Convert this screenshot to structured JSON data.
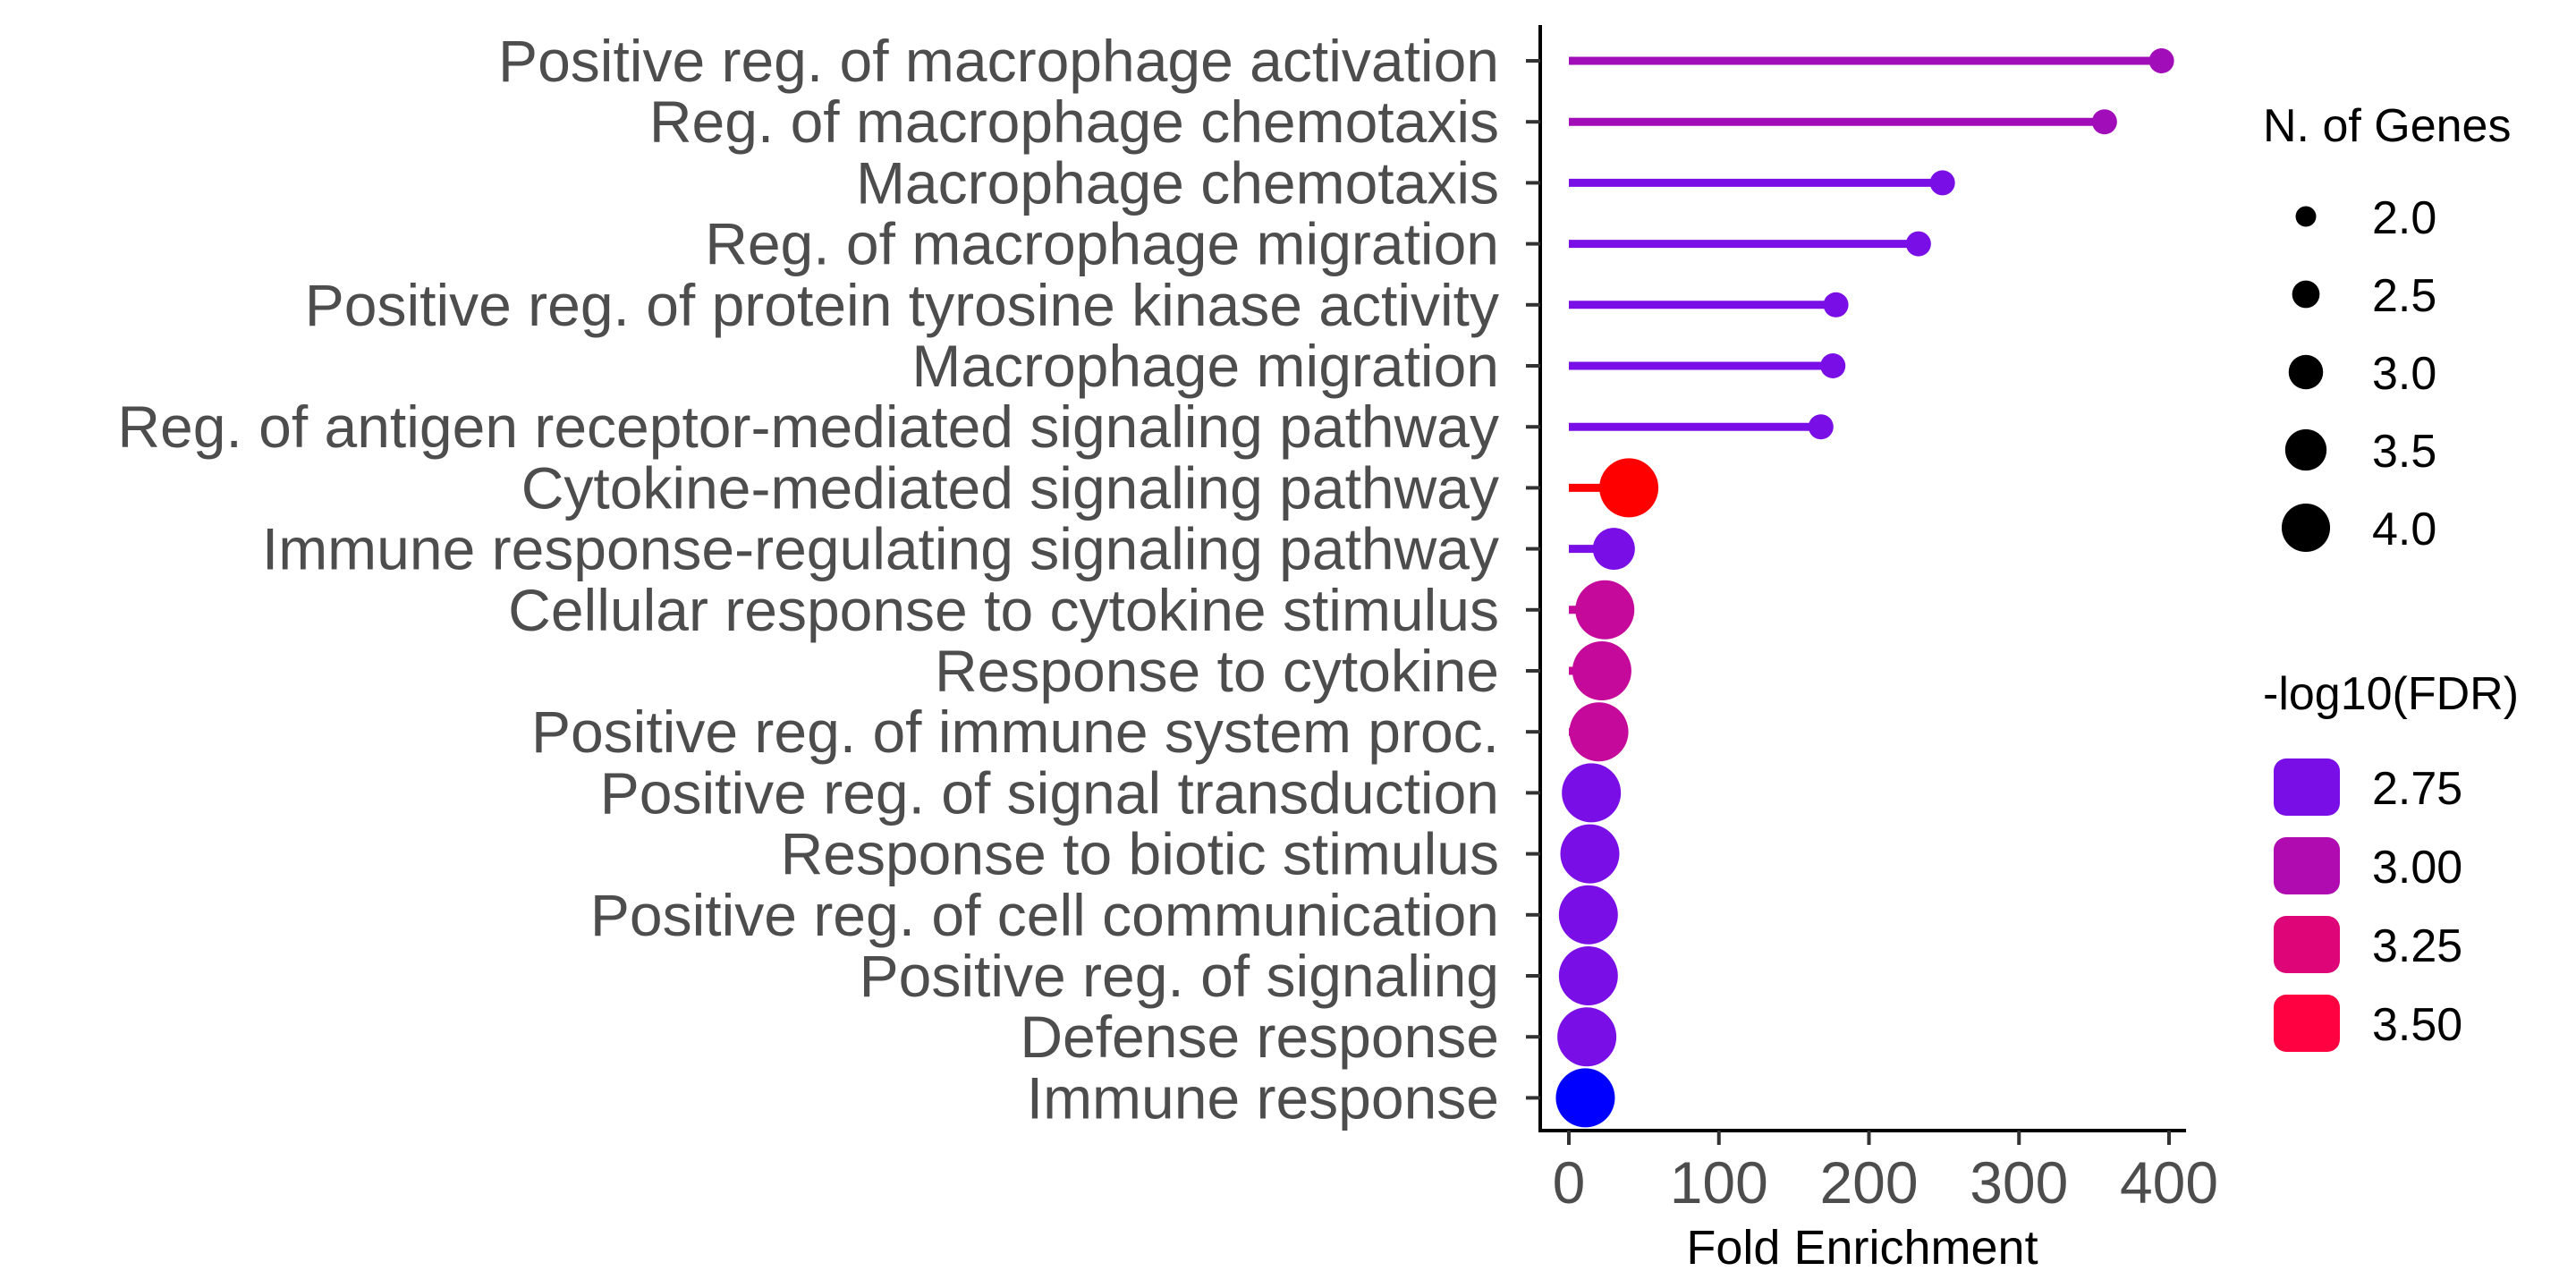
{
  "chart_data": {
    "type": "lollipop",
    "xlabel": "Fold Enrichment",
    "ylabel": "",
    "xlim": [
      -20,
      410
    ],
    "xticks": [
      0,
      100,
      200,
      300,
      400
    ],
    "grid": false,
    "categories": [
      "Positive reg. of macrophage activation",
      "Reg. of macrophage chemotaxis",
      "Macrophage chemotaxis",
      "Reg. of macrophage migration",
      "Positive reg. of protein tyrosine kinase activity",
      "Macrophage migration",
      "Reg. of antigen receptor-mediated signaling pathway",
      "Cytokine-mediated signaling pathway",
      "Immune response-regulating signaling pathway",
      "Cellular response to cytokine stimulus",
      "Response to cytokine",
      "Positive reg. of immune system proc.",
      "Positive reg. of signal transduction",
      "Response to biotic stimulus",
      "Positive reg. of cell communication",
      "Positive reg. of signaling",
      "Defense response",
      "Immune response"
    ],
    "fold_enrichment": [
      395,
      357,
      249,
      233,
      178,
      176,
      168,
      40,
      30,
      24,
      22,
      20,
      15,
      14,
      13,
      13,
      12,
      11
    ],
    "n_genes": [
      2,
      2,
      2,
      2,
      2,
      2,
      2,
      4,
      3,
      4,
      4,
      4,
      4,
      4,
      4,
      4,
      4,
      4
    ],
    "neg_log10_fdr": [
      3.0,
      3.0,
      2.8,
      2.8,
      2.8,
      2.8,
      2.8,
      3.6,
      2.8,
      3.15,
      3.15,
      3.15,
      2.8,
      2.8,
      2.8,
      2.8,
      2.8,
      2.55
    ],
    "point_colors": [
      "#A10DB8",
      "#A10DB8",
      "#7A0EE6",
      "#7A0EE6",
      "#7A0EE6",
      "#7A0EE6",
      "#7A0EE6",
      "#FF0000",
      "#7A0EE6",
      "#C5099A",
      "#C5099A",
      "#C5099A",
      "#7A0EE6",
      "#7A0EE6",
      "#7A0EE6",
      "#7A0EE6",
      "#7A0EE6",
      "#0000FF"
    ],
    "legend_size": {
      "title": "N. of Genes",
      "values": [
        "2.0",
        "2.5",
        "3.0",
        "3.5",
        "4.0"
      ]
    },
    "legend_color": {
      "title": "-log10(FDR)",
      "values": [
        "2.75",
        "3.00",
        "3.25",
        "3.50"
      ],
      "colors": [
        "#7A0EE6",
        "#B00BB0",
        "#DD0577",
        "#FF0040"
      ]
    },
    "legend_placement": "right"
  }
}
